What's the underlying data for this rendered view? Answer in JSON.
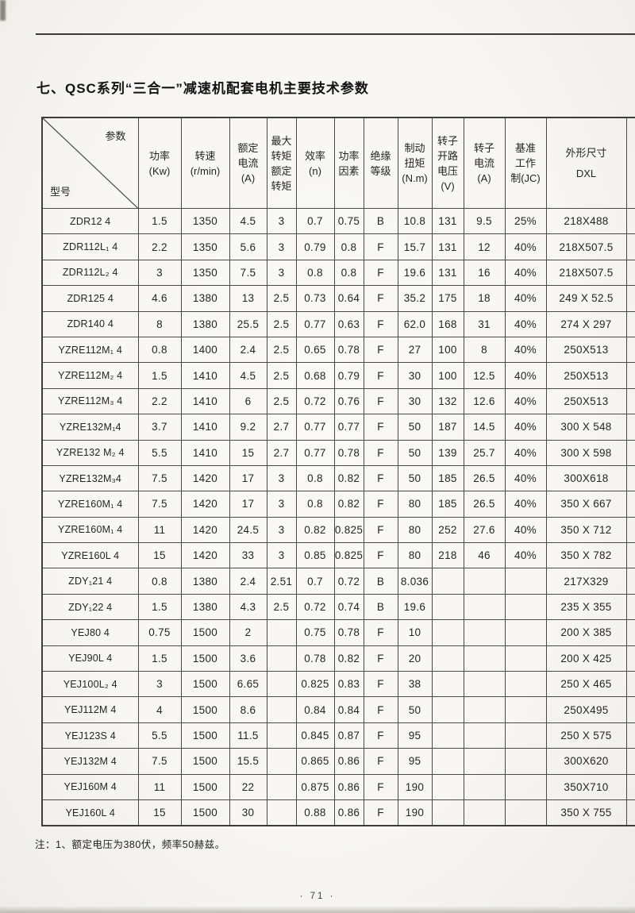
{
  "page": {
    "title": "七、QSC系列“三合一”减速机配套电机主要技术参数",
    "note": "注：1、额定电压为380伏，频率50赫兹。",
    "page_number": "· 71 ·"
  },
  "table": {
    "corner": {
      "top_label": "参数",
      "bottom_label": "型号"
    },
    "columns": [
      {
        "id": "power",
        "lines": [
          "功率",
          "(Kw)"
        ]
      },
      {
        "id": "speed",
        "lines": [
          "转速",
          "(r/min)"
        ]
      },
      {
        "id": "rated-current",
        "lines": [
          "额定",
          "电流",
          "(A)"
        ]
      },
      {
        "id": "torque-ratio",
        "lines": [
          "最大",
          "转矩",
          "额定",
          "转矩"
        ]
      },
      {
        "id": "efficiency",
        "lines": [
          "效率",
          "(n)"
        ]
      },
      {
        "id": "power-factor",
        "lines": [
          "功率",
          "因素"
        ]
      },
      {
        "id": "insulation",
        "lines": [
          "绝缘",
          "等级"
        ]
      },
      {
        "id": "brake-torque",
        "lines": [
          "制动",
          "扭矩",
          "(N.m)"
        ]
      },
      {
        "id": "rotor-voltage",
        "lines": [
          "转子",
          "开路",
          "电压",
          "(V)"
        ]
      },
      {
        "id": "rotor-current",
        "lines": [
          "转子",
          "电流",
          "(A)"
        ]
      },
      {
        "id": "duty-cycle",
        "lines": [
          "基准",
          "工作",
          "制(JC)"
        ]
      },
      {
        "id": "dimensions",
        "lines": [
          "外形尺寸",
          "DXL"
        ]
      }
    ],
    "rows": [
      [
        "ZDR12 4",
        "1.5",
        "1350",
        "4.5",
        "3",
        "0.7",
        "0.75",
        "B",
        "10.8",
        "131",
        "9.5",
        "25%",
        "218X488"
      ],
      [
        "ZDR112L₁ 4",
        "2.2",
        "1350",
        "5.6",
        "3",
        "0.79",
        "0.8",
        "F",
        "15.7",
        "131",
        "12",
        "40%",
        "218X507.5"
      ],
      [
        "ZDR112L₂ 4",
        "3",
        "1350",
        "7.5",
        "3",
        "0.8",
        "0.8",
        "F",
        "19.6",
        "131",
        "16",
        "40%",
        "218X507.5"
      ],
      [
        "ZDR125  4",
        "4.6",
        "1380",
        "13",
        "2.5",
        "0.73",
        "0.64",
        "F",
        "35.2",
        "175",
        "18",
        "40%",
        "249 X 52.5"
      ],
      [
        "ZDR140  4",
        "8",
        "1380",
        "25.5",
        "2.5",
        "0.77",
        "0.63",
        "F",
        "62.0",
        "168",
        "31",
        "40%",
        "274 X 297"
      ],
      [
        "YZRE112M₁ 4",
        "0.8",
        "1400",
        "2.4",
        "2.5",
        "0.65",
        "0.78",
        "F",
        "27",
        "100",
        "8",
        "40%",
        "250X513"
      ],
      [
        "YZRE112M₂ 4",
        "1.5",
        "1410",
        "4.5",
        "2.5",
        "0.68",
        "0.79",
        "F",
        "30",
        "100",
        "12.5",
        "40%",
        "250X513"
      ],
      [
        "YZRE112M₃ 4",
        "2.2",
        "1410",
        "6",
        "2.5",
        "0.72",
        "0.76",
        "F",
        "30",
        "132",
        "12.6",
        "40%",
        "250X513"
      ],
      [
        "YZRE132M₁4",
        "3.7",
        "1410",
        "9.2",
        "2.7",
        "0.77",
        "0.77",
        "F",
        "50",
        "187",
        "14.5",
        "40%",
        "300 X 548"
      ],
      [
        "YZRE132 M₂ 4",
        "5.5",
        "1410",
        "15",
        "2.7",
        "0.77",
        "0.78",
        "F",
        "50",
        "139",
        "25.7",
        "40%",
        "300 X 598"
      ],
      [
        "YZRE132M₃4",
        "7.5",
        "1420",
        "17",
        "3",
        "0.8",
        "0.82",
        "F",
        "50",
        "185",
        "26.5",
        "40%",
        "300X618"
      ],
      [
        "YZRE160M₁ 4",
        "7.5",
        "1420",
        "17",
        "3",
        "0.8",
        "0.82",
        "F",
        "80",
        "185",
        "26.5",
        "40%",
        "350 X 667"
      ],
      [
        "YZRE160M₁ 4",
        "11",
        "1420",
        "24.5",
        "3",
        "0.82",
        "0.825",
        "F",
        "80",
        "252",
        "27.6",
        "40%",
        "350 X 712"
      ],
      [
        "YZRE160L 4",
        "15",
        "1420",
        "33",
        "3",
        "0.85",
        "0.825",
        "F",
        "80",
        "218",
        "46",
        "40%",
        "350 X 782"
      ],
      [
        "ZDY₁21 4",
        "0.8",
        "1380",
        "2.4",
        "2.51",
        "0.7",
        "0.72",
        "B",
        "8.036",
        "",
        "",
        "",
        "217X329"
      ],
      [
        "ZDY₁22 4",
        "1.5",
        "1380",
        "4.3",
        "2.5",
        "0.72",
        "0.74",
        "B",
        "19.6",
        "",
        "",
        "",
        "235 X 355"
      ],
      [
        "YEJ80 4",
        "0.75",
        "1500",
        "2",
        "",
        "0.75",
        "0.78",
        "F",
        "10",
        "",
        "",
        "",
        "200 X 385"
      ],
      [
        "YEJ90L 4",
        "1.5",
        "1500",
        "3.6",
        "",
        "0.78",
        "0.82",
        "F",
        "20",
        "",
        "",
        "",
        "200 X 425"
      ],
      [
        "YEJ100L₂ 4",
        "3",
        "1500",
        "6.65",
        "",
        "0.825",
        "0.83",
        "F",
        "38",
        "",
        "",
        "",
        "250 X 465"
      ],
      [
        "YEJ112M 4",
        "4",
        "1500",
        "8.6",
        "",
        "0.84",
        "0.84",
        "F",
        "50",
        "",
        "",
        "",
        "250X495"
      ],
      [
        "YEJ123S 4",
        "5.5",
        "1500",
        "11.5",
        "",
        "0.845",
        "0.87",
        "F",
        "95",
        "",
        "",
        "",
        "250 X 575"
      ],
      [
        "YEJ132M 4",
        "7.5",
        "1500",
        "15.5",
        "",
        "0.865",
        "0.86",
        "F",
        "95",
        "",
        "",
        "",
        "300X620"
      ],
      [
        "YEJ160M 4",
        "11",
        "1500",
        "22",
        "",
        "0.875",
        "0.86",
        "F",
        "190",
        "",
        "",
        "",
        "350X710"
      ],
      [
        "YEJ160L 4",
        "15",
        "1500",
        "30",
        "",
        "0.88",
        "0.86",
        "F",
        "190",
        "",
        "",
        "",
        "350 X 755"
      ]
    ]
  }
}
